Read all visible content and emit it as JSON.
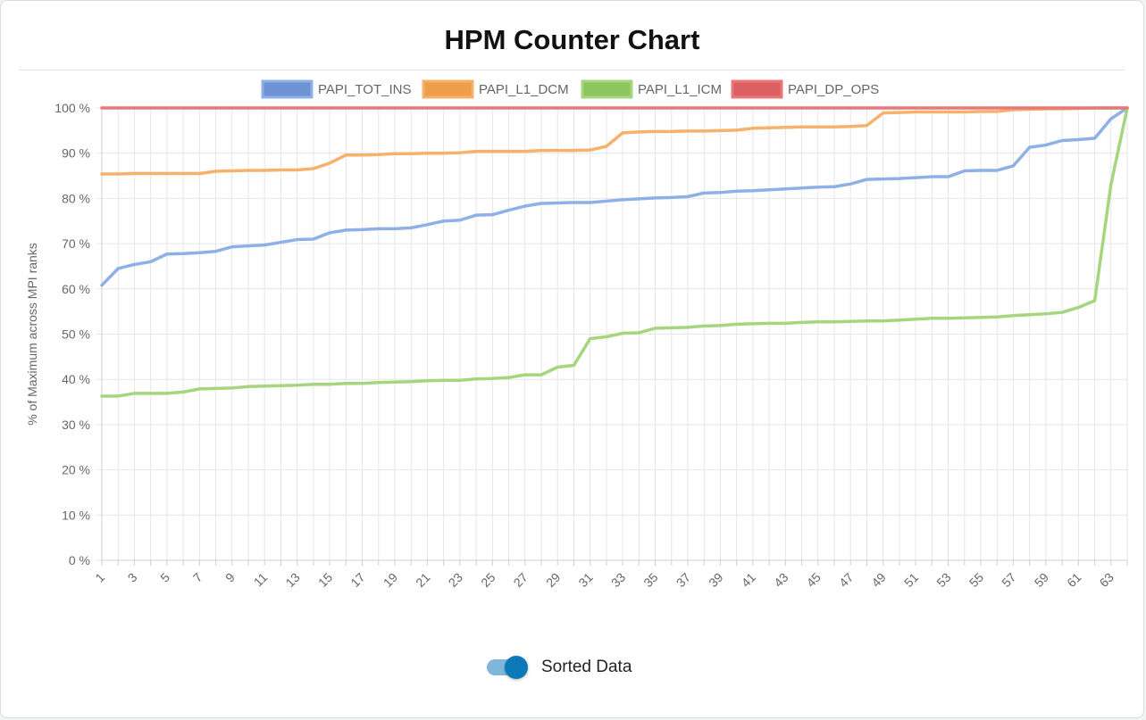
{
  "title": "HPM Counter Chart",
  "toggle": {
    "label": "Sorted Data",
    "checked": true
  },
  "chart_data": {
    "type": "line",
    "ylabel": "% of Maximum across MPI ranks",
    "xlabel": "",
    "ylim": [
      0,
      100
    ],
    "yticks": [
      0,
      10,
      20,
      30,
      40,
      50,
      60,
      70,
      80,
      90,
      100
    ],
    "ytick_suffix": " %",
    "x_start": 1,
    "x_end": 64,
    "x_tick_labels": [
      "1",
      "3",
      "5",
      "7",
      "9",
      "11",
      "13",
      "15",
      "17",
      "19",
      "21",
      "23",
      "25",
      "27",
      "29",
      "31",
      "33",
      "35",
      "37",
      "39",
      "41",
      "43",
      "45",
      "47",
      "49",
      "51",
      "53",
      "55",
      "57",
      "59",
      "61",
      "63"
    ],
    "grid": true,
    "legend_position": "top",
    "series": [
      {
        "name": "PAPI_TOT_INS",
        "color": "#8eb0e6",
        "legend_fill": "#6e92d4",
        "values": [
          60.8,
          64.5,
          65.4,
          66.0,
          67.7,
          67.8,
          68.0,
          68.3,
          69.3,
          69.5,
          69.7,
          70.3,
          70.9,
          71.0,
          72.4,
          73.0,
          73.1,
          73.3,
          73.3,
          73.5,
          74.2,
          75.0,
          75.2,
          76.3,
          76.4,
          77.4,
          78.3,
          78.9,
          79.0,
          79.1,
          79.1,
          79.4,
          79.7,
          79.9,
          80.1,
          80.2,
          80.4,
          81.2,
          81.3,
          81.6,
          81.7,
          81.9,
          82.1,
          82.3,
          82.5,
          82.6,
          83.2,
          84.2,
          84.3,
          84.4,
          84.6,
          84.8,
          84.8,
          86.1,
          86.2,
          86.2,
          87.2,
          91.3,
          91.8,
          92.8,
          93.0,
          93.3,
          97.6,
          100.0
        ]
      },
      {
        "name": "PAPI_L1_DCM",
        "color": "#f6b26b",
        "legend_fill": "#ee9e4a",
        "values": [
          85.4,
          85.4,
          85.5,
          85.5,
          85.5,
          85.5,
          85.5,
          86.0,
          86.1,
          86.2,
          86.2,
          86.3,
          86.3,
          86.6,
          87.8,
          89.6,
          89.6,
          89.7,
          89.9,
          89.9,
          90.0,
          90.0,
          90.1,
          90.4,
          90.4,
          90.4,
          90.4,
          90.6,
          90.6,
          90.6,
          90.7,
          91.5,
          94.5,
          94.7,
          94.8,
          94.8,
          94.9,
          94.9,
          95.0,
          95.1,
          95.5,
          95.6,
          95.7,
          95.8,
          95.8,
          95.8,
          95.9,
          96.1,
          98.9,
          99.0,
          99.1,
          99.1,
          99.1,
          99.1,
          99.2,
          99.2,
          99.6,
          99.7,
          99.8,
          99.8,
          99.9,
          100.0,
          100.0,
          100.0
        ]
      },
      {
        "name": "PAPI_L1_ICM",
        "color": "#a5d67f",
        "legend_fill": "#8cc65d",
        "values": [
          36.3,
          36.3,
          36.9,
          36.9,
          36.9,
          37.2,
          37.9,
          38.0,
          38.1,
          38.4,
          38.5,
          38.6,
          38.7,
          38.9,
          38.9,
          39.1,
          39.1,
          39.3,
          39.4,
          39.5,
          39.7,
          39.8,
          39.8,
          40.1,
          40.2,
          40.4,
          41.0,
          41.0,
          42.7,
          43.1,
          49.0,
          49.4,
          50.2,
          50.3,
          51.3,
          51.4,
          51.5,
          51.8,
          51.9,
          52.2,
          52.3,
          52.4,
          52.4,
          52.6,
          52.7,
          52.7,
          52.8,
          52.9,
          52.9,
          53.1,
          53.3,
          53.5,
          53.5,
          53.6,
          53.7,
          53.8,
          54.1,
          54.3,
          54.5,
          54.8,
          55.9,
          57.4,
          83.1,
          100.0
        ]
      },
      {
        "name": "PAPI_DP_OPS",
        "color": "#e8777a",
        "legend_fill": "#dc5f62",
        "values": [
          100,
          100,
          100,
          100,
          100,
          100,
          100,
          100,
          100,
          100,
          100,
          100,
          100,
          100,
          100,
          100,
          100,
          100,
          100,
          100,
          100,
          100,
          100,
          100,
          100,
          100,
          100,
          100,
          100,
          100,
          100,
          100,
          100,
          100,
          100,
          100,
          100,
          100,
          100,
          100,
          100,
          100,
          100,
          100,
          100,
          100,
          100,
          100,
          100,
          100,
          100,
          100,
          100,
          100,
          100,
          100,
          100,
          100,
          100,
          100,
          100,
          100,
          100,
          100
        ]
      }
    ]
  }
}
